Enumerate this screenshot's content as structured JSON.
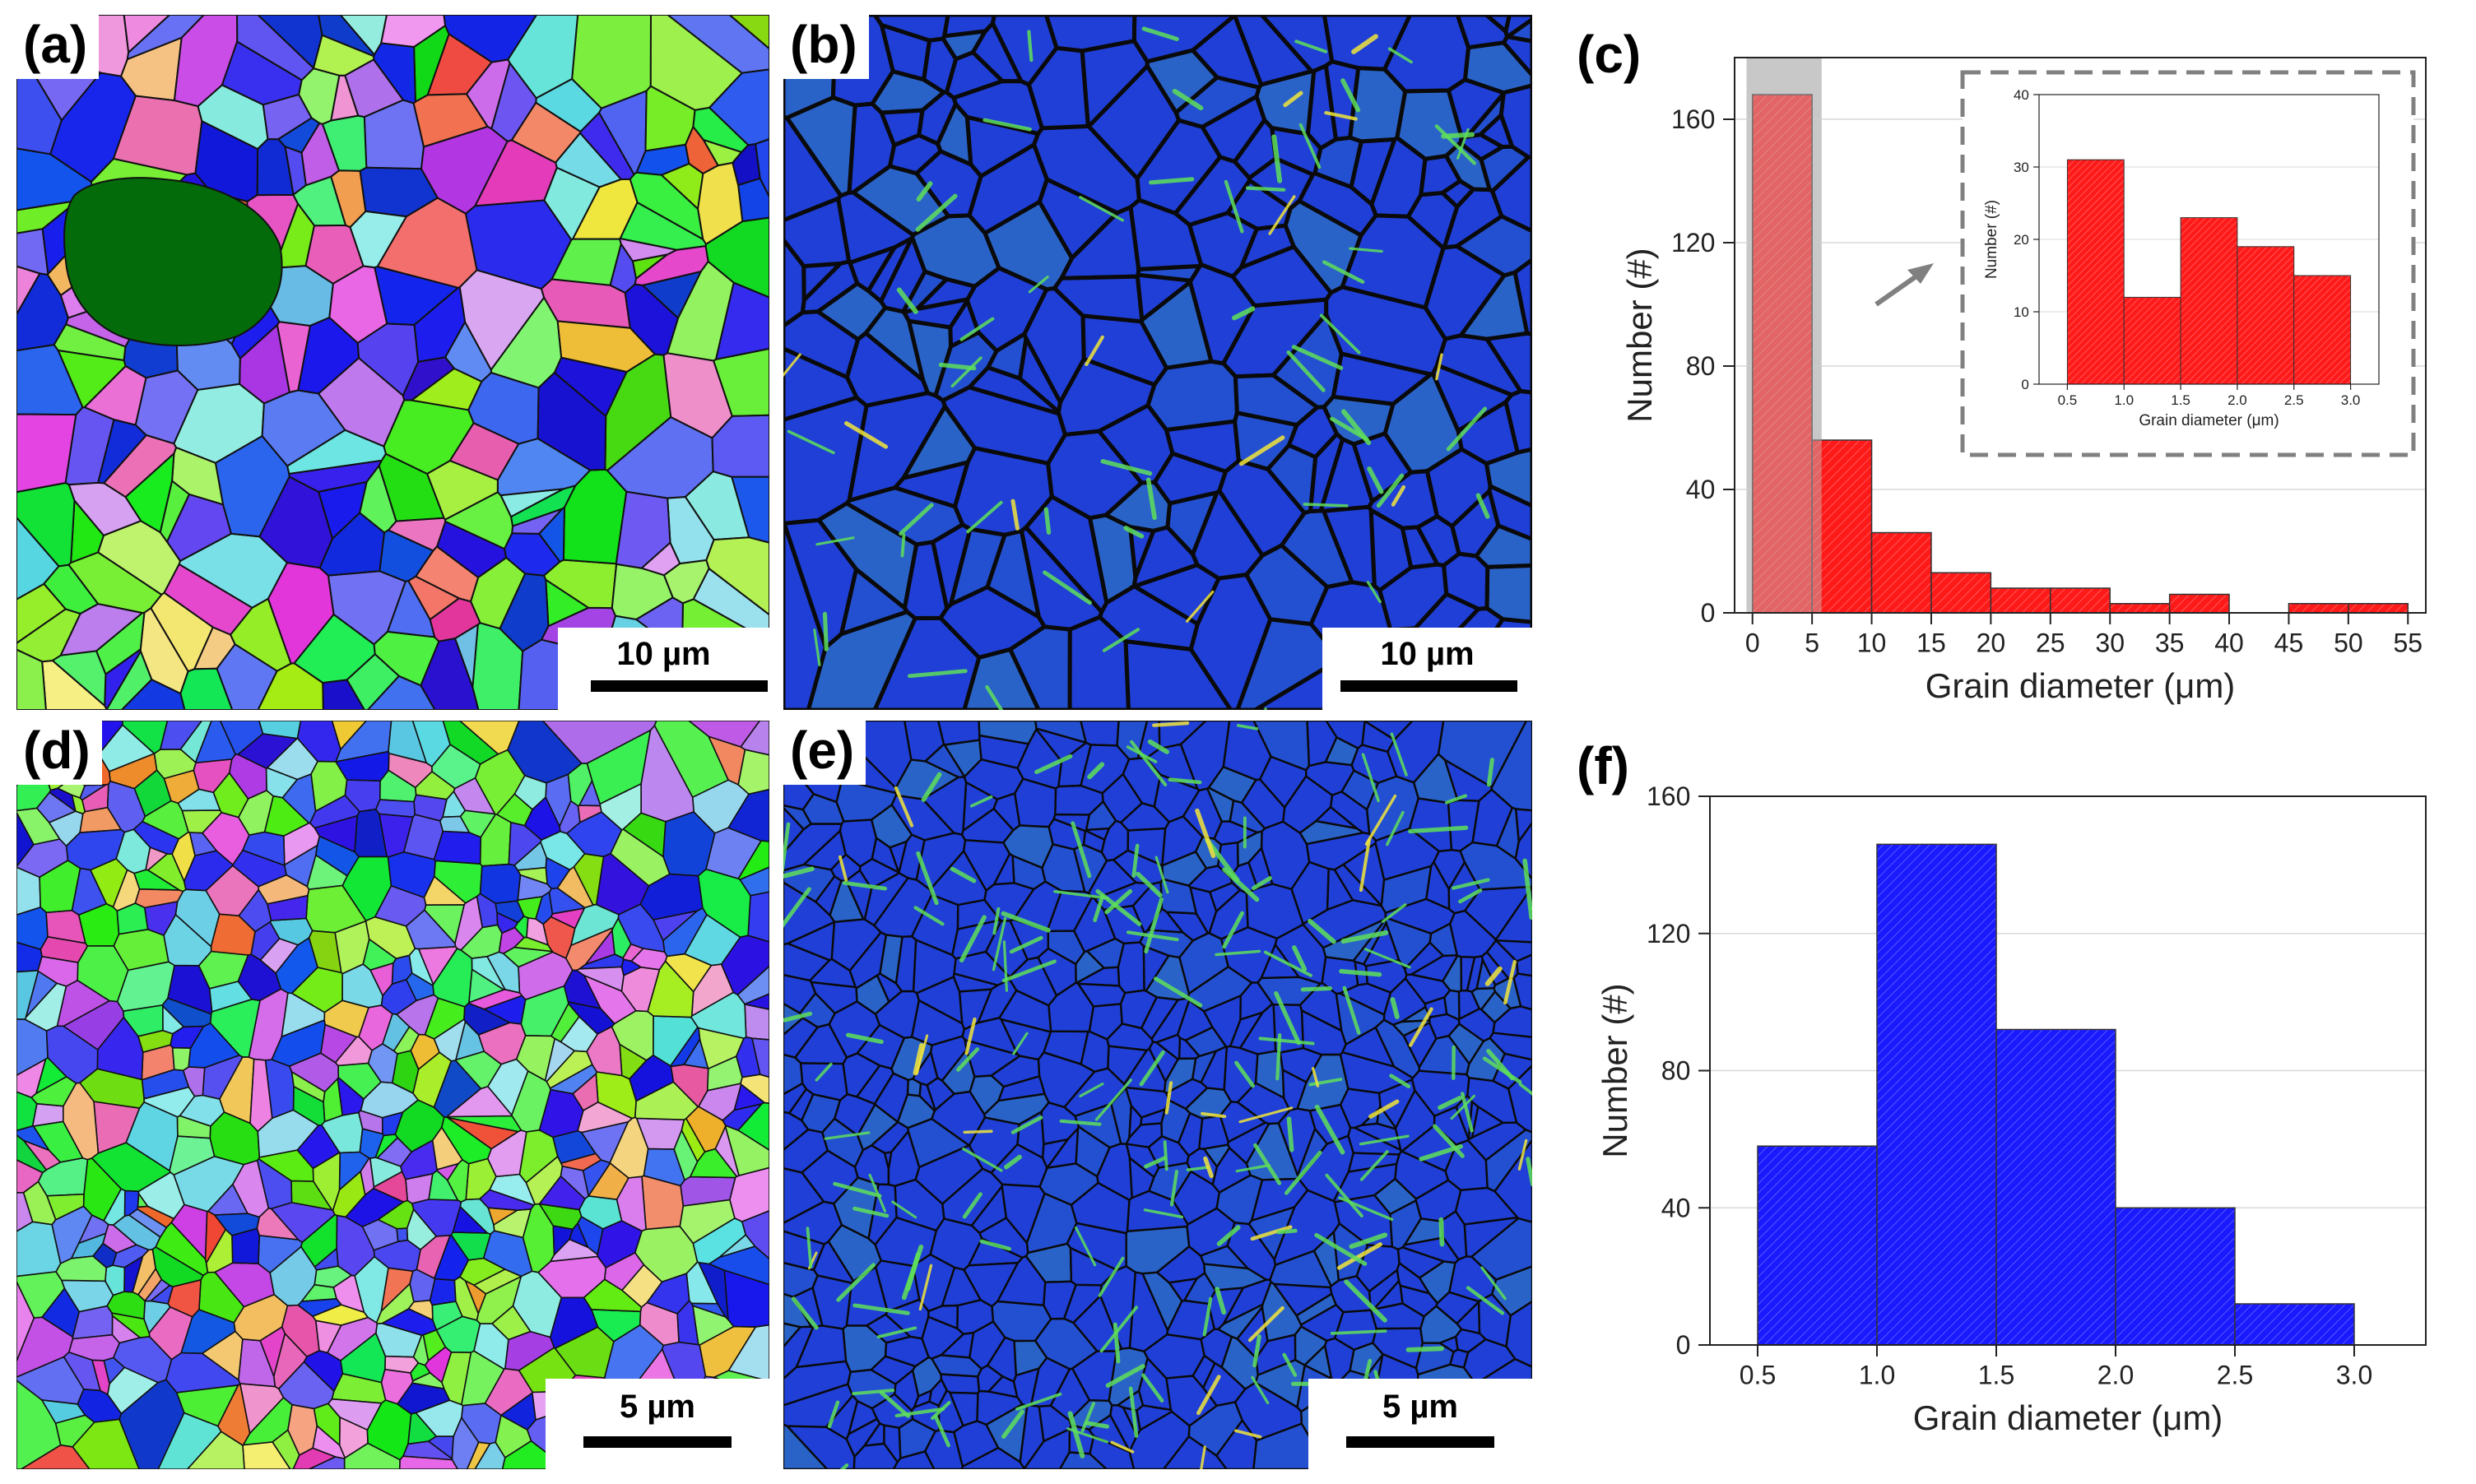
{
  "panels": {
    "a": {
      "label": "(a)",
      "scale": "10 µm",
      "type": "ipf-map"
    },
    "b": {
      "label": "(b)",
      "scale": "10 µm",
      "type": "kam-map"
    },
    "c": {
      "label": "(c)"
    },
    "d": {
      "label": "(d)",
      "scale": "5 µm",
      "type": "ipf-map"
    },
    "e": {
      "label": "(e)",
      "scale": "5 µm",
      "type": "kam-map"
    },
    "f": {
      "label": "(f)"
    }
  },
  "colors": {
    "bar_c": "#ff1a1a",
    "bar_f": "#1a1aff",
    "highlight": "#cfcfcf",
    "kam_base": "#1f3fd6",
    "inset_frame": "#808080"
  },
  "chart_data": [
    {
      "id": "c",
      "type": "bar",
      "title": "",
      "xlabel": "Grain diameter (μm)",
      "ylabel": "Number (#)",
      "bin_edges": [
        0,
        5,
        10,
        15,
        20,
        25,
        30,
        35,
        40,
        45,
        50,
        55
      ],
      "values": [
        168,
        56,
        26,
        13,
        8,
        8,
        3,
        6,
        0,
        3,
        3
      ],
      "xticks": [
        "0",
        "5",
        "10",
        "15",
        "20",
        "25",
        "30",
        "35",
        "40",
        "45",
        "50",
        "55"
      ],
      "yticks": [
        "0",
        "40",
        "80",
        "120",
        "160"
      ],
      "xlim": [
        -1.5,
        56.5
      ],
      "ylim": [
        0,
        180
      ],
      "highlight_range": [
        -0.5,
        5.8
      ],
      "inset": {
        "type": "bar",
        "xlabel": "Grain diameter (μm)",
        "ylabel": "Number (#)",
        "bin_edges": [
          0.5,
          1.0,
          1.5,
          2.0,
          2.5,
          3.0
        ],
        "values": [
          31,
          12,
          23,
          19,
          15
        ],
        "xticks": [
          "0.5",
          "1.0",
          "1.5",
          "2.0",
          "2.5",
          "3.0"
        ],
        "yticks": [
          "0",
          "10",
          "20",
          "30",
          "40"
        ],
        "xlim": [
          0.25,
          3.25
        ],
        "ylim": [
          0,
          40
        ]
      }
    },
    {
      "id": "f",
      "type": "bar",
      "title": "",
      "xlabel": "Grain diameter (μm)",
      "ylabel": "Number (#)",
      "bin_edges": [
        0.5,
        1.0,
        1.5,
        2.0,
        2.5,
        3.0
      ],
      "values": [
        58,
        146,
        92,
        40,
        12
      ],
      "xticks": [
        "0.5",
        "1.0",
        "1.5",
        "2.0",
        "2.5",
        "3.0"
      ],
      "yticks": [
        "0",
        "40",
        "80",
        "120",
        "160"
      ],
      "xlim": [
        0.3,
        3.3
      ],
      "ylim": [
        0,
        160
      ]
    }
  ]
}
